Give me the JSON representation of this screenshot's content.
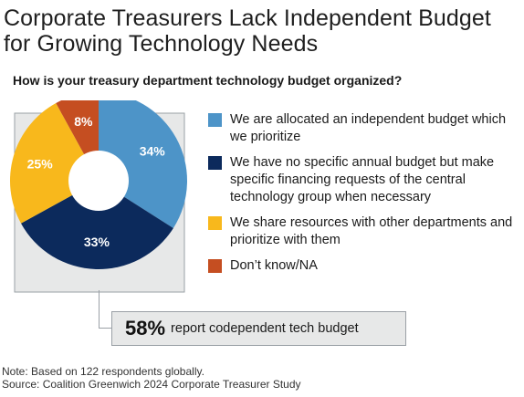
{
  "title": "Corporate Treasurers Lack Independent Budget for Growing Technology Needs",
  "subtitle": "How is your treasury department technology budget organized?",
  "chart_data": {
    "type": "pie",
    "donut": true,
    "slices": [
      {
        "label": "We are allocated an independent budget which we prioritize",
        "value": 34,
        "display": "34%",
        "color": "#4d94c8"
      },
      {
        "label": "We have no specific annual budget but make specific financing requests of the central technology group when necessary",
        "value": 33,
        "display": "33%",
        "color": "#0c2a5c"
      },
      {
        "label": "We share resources with other departments and prioritize with them",
        "value": 25,
        "display": "25%",
        "color": "#f8b81c"
      },
      {
        "label": "Don’t know/NA",
        "value": 8,
        "display": "8%",
        "color": "#c54e21"
      }
    ],
    "legend_placement": "right"
  },
  "callout": {
    "number": "58%",
    "text": "report codependent tech budget"
  },
  "footer": {
    "note": "Note: Based on 122 respondents globally.",
    "source": "Source: Coalition Greenwich 2024 Corporate Treasurer Study"
  }
}
